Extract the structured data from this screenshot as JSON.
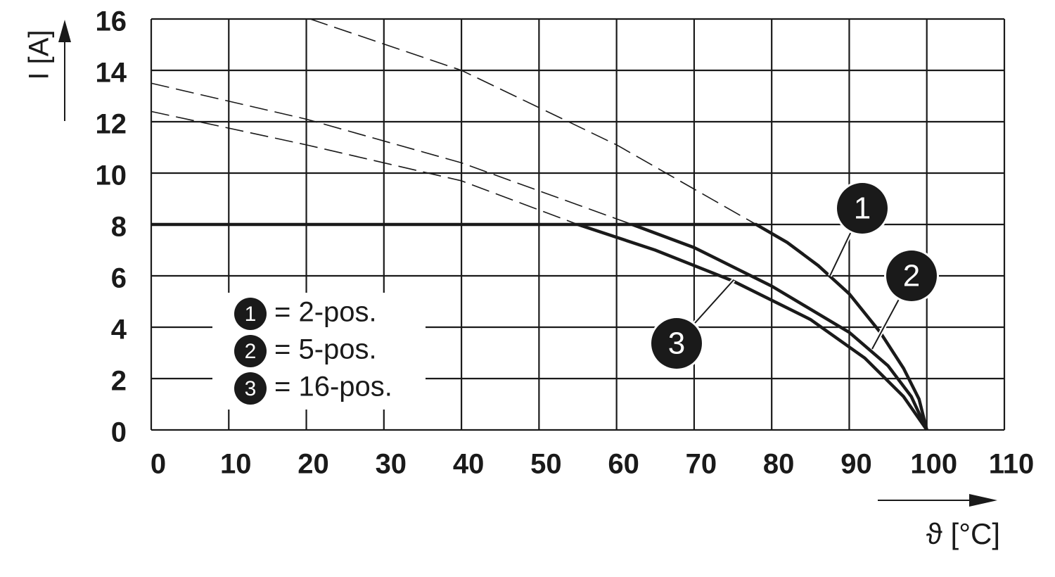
{
  "chart_data": {
    "type": "line",
    "y_label": "I [A]",
    "x_label": "ϑ [°C]",
    "xlim": [
      0,
      110
    ],
    "ylim": [
      0,
      16
    ],
    "xticks": [
      0,
      10,
      20,
      30,
      40,
      50,
      60,
      70,
      80,
      90,
      100,
      110
    ],
    "yticks": [
      0,
      2,
      4,
      6,
      8,
      10,
      12,
      14,
      16
    ],
    "grid": true,
    "series": [
      {
        "name": "= 2-pos.",
        "label": "1",
        "color": "#1a1a1a",
        "style": "solid",
        "x": [
          0,
          78,
          82,
          86,
          90,
          94,
          97,
          99,
          100
        ],
        "values": [
          8,
          8,
          7.3,
          6.4,
          5.3,
          3.8,
          2.4,
          1.2,
          0
        ]
      },
      {
        "name": "= 5-pos.",
        "label": "2",
        "color": "#1a1a1a",
        "style": "solid",
        "x": [
          62,
          70,
          80,
          90,
          95,
          98,
          100
        ],
        "values": [
          8,
          7.1,
          5.6,
          3.8,
          2.5,
          1.3,
          0
        ]
      },
      {
        "name": "= 16-pos.",
        "label": "3",
        "color": "#1a1a1a",
        "style": "solid",
        "x": [
          55,
          65,
          75,
          85,
          92,
          97,
          100
        ],
        "values": [
          8,
          7.0,
          5.8,
          4.3,
          2.8,
          1.3,
          0
        ]
      },
      {
        "color": "#1a1a1a",
        "style": "dashed",
        "x": [
          20.5,
          40,
          60,
          78
        ],
        "values": [
          16,
          14,
          11.1,
          8
        ]
      },
      {
        "color": "#1a1a1a",
        "style": "dashed",
        "x": [
          0,
          20,
          40,
          62
        ],
        "values": [
          13.5,
          12.1,
          10.4,
          8
        ]
      },
      {
        "color": "#1a1a1a",
        "style": "dashed",
        "x": [
          0,
          20,
          40,
          55
        ],
        "values": [
          12.4,
          11.1,
          9.7,
          8
        ]
      }
    ]
  }
}
